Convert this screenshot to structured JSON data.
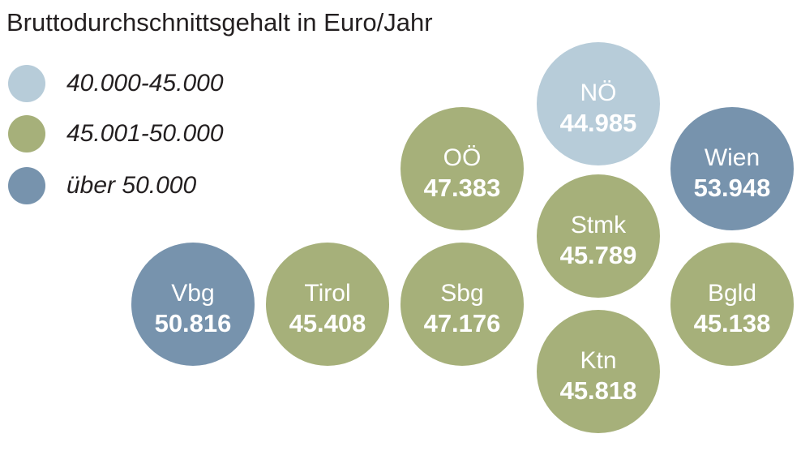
{
  "chart_data": {
    "type": "bubble-map",
    "title": "Bruttodurchschnittsgehalt in Euro/Jahr",
    "legend": [
      {
        "label": "40.000-45.000",
        "color": "#b7ccd9"
      },
      {
        "label": "45.001-50.000",
        "color": "#a6b07a"
      },
      {
        "label": "über 50.000",
        "color": "#7793ad"
      }
    ],
    "regions": [
      {
        "name": "NÖ",
        "value": "44.985",
        "category": 0
      },
      {
        "name": "OÖ",
        "value": "47.383",
        "category": 1
      },
      {
        "name": "Wien",
        "value": "53.948",
        "category": 2
      },
      {
        "name": "Stmk",
        "value": "45.789",
        "category": 1
      },
      {
        "name": "Vbg",
        "value": "50.816",
        "category": 2
      },
      {
        "name": "Tirol",
        "value": "45.408",
        "category": 1
      },
      {
        "name": "Sbg",
        "value": "47.176",
        "category": 1
      },
      {
        "name": "Bgld",
        "value": "45.138",
        "category": 1
      },
      {
        "name": "Ktn",
        "value": "45.818",
        "category": 1
      }
    ]
  }
}
